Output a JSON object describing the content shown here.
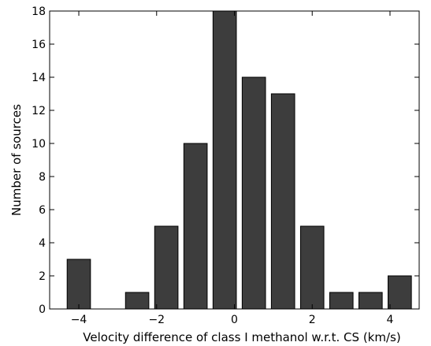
{
  "chart_data": {
    "type": "bar",
    "xlabel": "Velocity difference of class I methanol w.r.t. CS (km/s)",
    "ylabel": "Number of sources",
    "xlim": [
      -4.75,
      4.75
    ],
    "ylim": [
      0,
      18
    ],
    "bar_width": 0.6,
    "bar_color": "#3d3d3d",
    "x_ticks": [
      -4,
      -2,
      0,
      2,
      4
    ],
    "x_tick_labels": [
      "−4",
      "−2",
      "0",
      "2",
      "4"
    ],
    "y_ticks": [
      0,
      2,
      4,
      6,
      8,
      10,
      12,
      14,
      16,
      18
    ],
    "y_tick_labels": [
      "0",
      "2",
      "4",
      "6",
      "8",
      "10",
      "12",
      "14",
      "16",
      "18"
    ],
    "x": [
      -4.0,
      -3.25,
      -2.5,
      -1.75,
      -1.0,
      -0.25,
      0.5,
      1.25,
      2.0,
      2.75,
      3.5,
      4.25
    ],
    "values": [
      3,
      0,
      1,
      5,
      10,
      18,
      14,
      13,
      5,
      1,
      1,
      2
    ],
    "grid": false
  }
}
